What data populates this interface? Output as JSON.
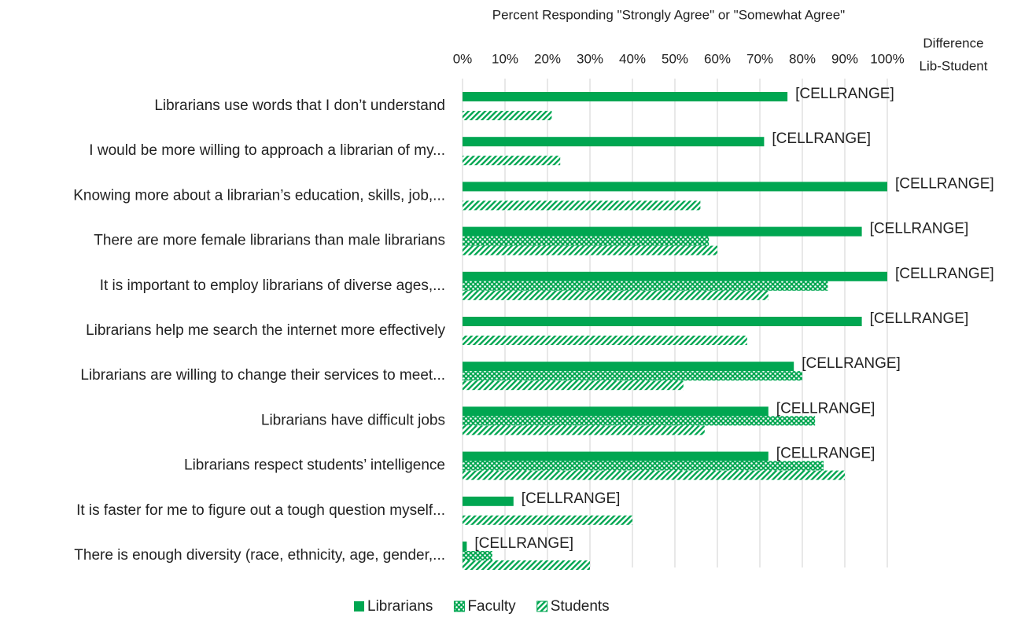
{
  "chart_data": {
    "type": "barh",
    "xlabel": "Percent Responding \"Strongly Agree\" or \"Somewhat Agree\"",
    "column_header": [
      "Difference",
      "Lib-Student"
    ],
    "categories": [
      "Librarians use words that I don’t  understand",
      "I would be more willing to approach a librarian of my...",
      "Knowing more about a librarian’s education, skills, job,...",
      "There are more female librarians than male librarians",
      "It is important to employ librarians of diverse ages,...",
      "Librarians help me search the internet more effectively",
      "Librarians are willing to change their services to meet...",
      "Librarians have difficult jobs",
      "Librarians respect students’ intelligence",
      "It is faster for me to figure out a tough question myself...",
      "There is enough diversity (race, ethnicity, age, gender,..."
    ],
    "series": [
      {
        "name": "Librarians",
        "color": "#00a651",
        "pattern": "solid",
        "values": [
          76.5,
          71,
          100,
          94,
          100,
          94,
          78,
          72,
          72,
          12,
          1
        ],
        "data_labels": [
          "[CELLRANGE]",
          "[CELLRANGE]",
          "[CELLRANGE]",
          "[CELLRANGE]",
          "[CELLRANGE]",
          "[CELLRANGE]",
          "[CELLRANGE]",
          "[CELLRANGE]",
          "[CELLRANGE]",
          "[CELLRANGE]",
          "[CELLRANGE]"
        ]
      },
      {
        "name": "Faculty",
        "color": "#00a651",
        "pattern": "dots",
        "values": [
          null,
          null,
          null,
          58,
          86,
          null,
          80,
          83,
          85,
          null,
          7
        ]
      },
      {
        "name": "Students",
        "color": "#00a651",
        "pattern": "hatch",
        "values": [
          21,
          23,
          56,
          60,
          72,
          67,
          52,
          57,
          90,
          40,
          30
        ]
      }
    ],
    "xlim": [
      0,
      100
    ],
    "xticks": [
      {
        "value": 0,
        "label": "0%"
      },
      {
        "value": 10,
        "label": "10%"
      },
      {
        "value": 20,
        "label": "20%"
      },
      {
        "value": 30,
        "label": "30%"
      },
      {
        "value": 40,
        "label": "40%"
      },
      {
        "value": 50,
        "label": "50%"
      },
      {
        "value": 60,
        "label": "60%"
      },
      {
        "value": 70,
        "label": "70%"
      },
      {
        "value": 80,
        "label": "80%"
      },
      {
        "value": 90,
        "label": "90%"
      },
      {
        "value": 100,
        "label": "100%"
      }
    ],
    "grid": true,
    "legend": "bottom"
  }
}
